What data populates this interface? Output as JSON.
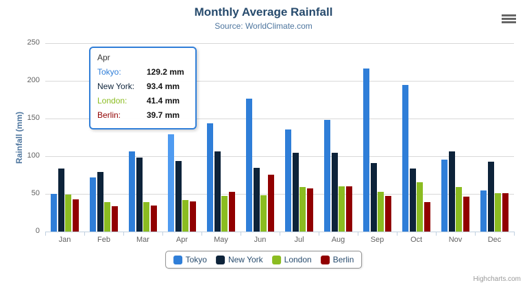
{
  "chart": {
    "title": "Monthly Average Rainfall",
    "subtitle": "Source: WorldClimate.com",
    "y_axis_title": "Rainfall (mm)",
    "credit": "Highcharts.com"
  },
  "chart_data": {
    "type": "bar",
    "title": "Monthly Average Rainfall",
    "subtitle": "Source: WorldClimate.com",
    "xlabel": "",
    "ylabel": "Rainfall (mm)",
    "ylim": [
      0,
      250
    ],
    "yticks": [
      0,
      50,
      100,
      150,
      200,
      250
    ],
    "grid": true,
    "legend_position": "bottom",
    "categories": [
      "Jan",
      "Feb",
      "Mar",
      "Apr",
      "May",
      "Jun",
      "Jul",
      "Aug",
      "Sep",
      "Oct",
      "Nov",
      "Dec"
    ],
    "series": [
      {
        "name": "Tokyo",
        "color": "#2f7ed8",
        "values": [
          49.9,
          71.5,
          106.4,
          129.2,
          144.0,
          176.0,
          135.6,
          148.5,
          216.4,
          194.1,
          95.6,
          54.4
        ]
      },
      {
        "name": "New York",
        "color": "#0d233a",
        "values": [
          83.6,
          78.8,
          98.5,
          93.4,
          106.0,
          84.5,
          105.0,
          104.3,
          91.2,
          83.5,
          106.6,
          92.3
        ]
      },
      {
        "name": "London",
        "color": "#8bbc21",
        "values": [
          48.9,
          38.8,
          39.3,
          41.4,
          47.0,
          48.3,
          59.0,
          59.6,
          52.4,
          65.2,
          59.3,
          51.2
        ]
      },
      {
        "name": "Berlin",
        "color": "#910000",
        "values": [
          42.4,
          33.2,
          34.5,
          39.7,
          52.6,
          75.5,
          57.4,
          60.4,
          47.6,
          39.1,
          46.8,
          51.1
        ]
      }
    ],
    "hover": {
      "category": "Apr",
      "series": "Tokyo",
      "highlight_color": "#4f9bf1"
    }
  },
  "tooltip": {
    "header": "Apr",
    "rows": [
      {
        "label": "Tokyo:",
        "value": "129.2 mm",
        "color": "#2f7ed8"
      },
      {
        "label": "New York:",
        "value": "93.4 mm",
        "color": "#0d233a"
      },
      {
        "label": "London:",
        "value": "41.4 mm",
        "color": "#8bbc21"
      },
      {
        "label": "Berlin:",
        "value": "39.7 mm",
        "color": "#910000"
      }
    ]
  },
  "legend": {
    "items": [
      {
        "label": "Tokyo",
        "color": "#2f7ed8"
      },
      {
        "label": "New York",
        "color": "#0d233a"
      },
      {
        "label": "London",
        "color": "#8bbc21"
      },
      {
        "label": "Berlin",
        "color": "#910000"
      }
    ]
  },
  "colors": {
    "title": "#274b6d",
    "subtitle": "#4d759e",
    "axis_label": "#606060",
    "gridline": "#d8d8d8",
    "axis_line": "#c0d0e0",
    "legend_border": "#909090",
    "tooltip_border": "#2f7ed8",
    "credit": "#999999"
  }
}
